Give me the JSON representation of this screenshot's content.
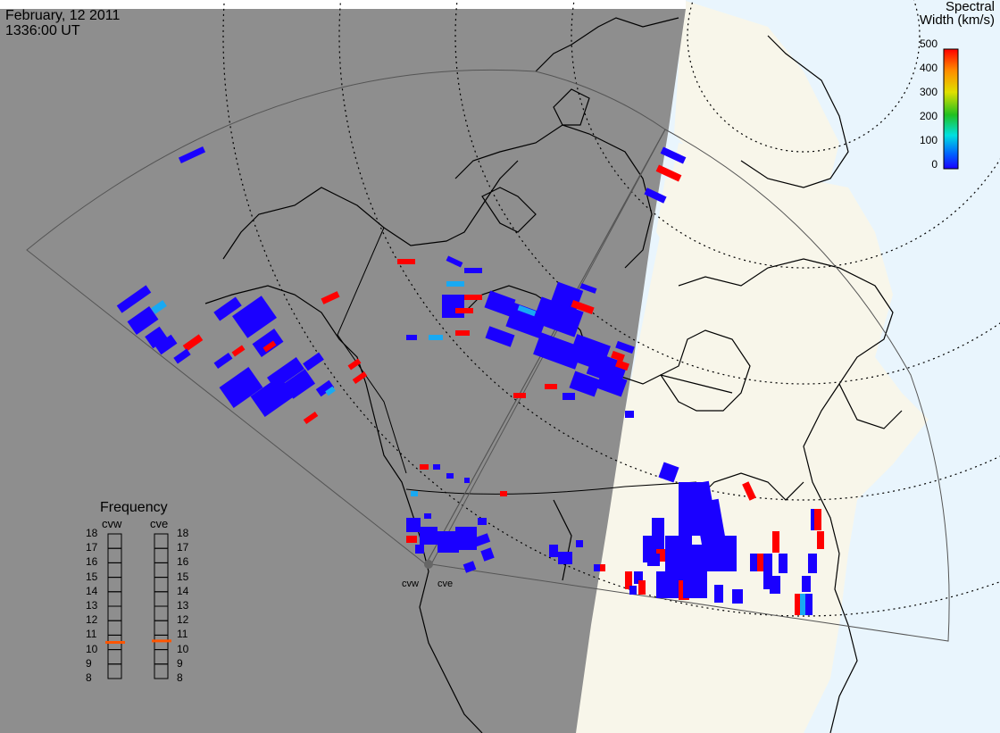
{
  "header": {
    "date": "February, 12 2011",
    "time": "1336:00 UT"
  },
  "colorbar": {
    "title_line1": "Spectral",
    "title_line2": "Width (km/s)",
    "ticks": [
      "500",
      "400",
      "300",
      "200",
      "100",
      "0"
    ],
    "colors": [
      "#ff0000",
      "#ff8c00",
      "#e0e000",
      "#20c020",
      "#00e0e0",
      "#0060ff",
      "#1a00ff"
    ]
  },
  "frequency_panel": {
    "title": "Frequency",
    "radars": [
      "cvw",
      "cve"
    ],
    "ticks": [
      "18",
      "17",
      "16",
      "15",
      "14",
      "13",
      "12",
      "11",
      "10",
      "9",
      "8"
    ],
    "current_mhz": {
      "cvw": 10.5,
      "cve": 10.6
    }
  },
  "sites": {
    "west": "cvw",
    "east": "cve"
  },
  "colors": {
    "night": "#8e8e8e",
    "day_land": "#f8f6ea",
    "day_sea": "#e9f5fd",
    "echo_low": "#1a00ff",
    "echo_mid": "#19a9f2",
    "echo_high": "#ff0000",
    "freq_marker": "#ff5500"
  }
}
